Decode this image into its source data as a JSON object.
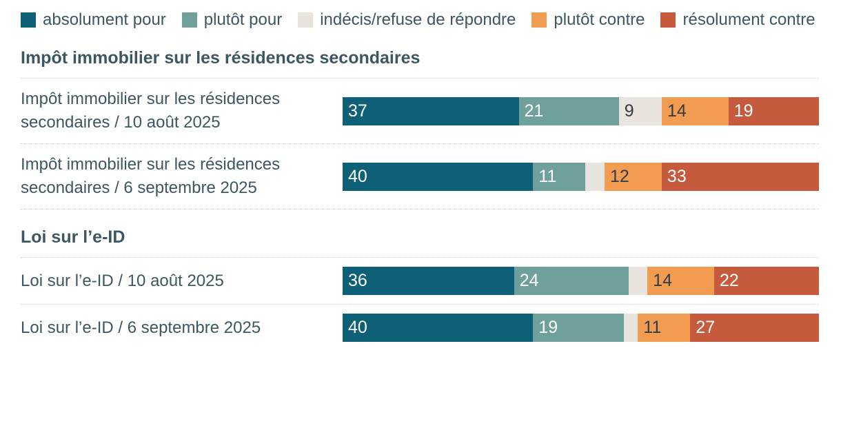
{
  "legend": {
    "items": [
      {
        "label": "absolument pour",
        "color": "#0e6076",
        "swatch_name": "absolument-pour-swatch"
      },
      {
        "label": "plutôt pour",
        "color": "#6fa09b",
        "swatch_name": "plutot-pour-swatch"
      },
      {
        "label": "indécis/refuse de répondre",
        "color": "#e9e4dd",
        "swatch_name": "indecis-swatch"
      },
      {
        "label": "plutôt contre",
        "color": "#f29c52",
        "swatch_name": "plutot-contre-swatch"
      },
      {
        "label": "résolument contre",
        "color": "#c65a3c",
        "swatch_name": "resolument-contre-swatch"
      }
    ]
  },
  "colors": {
    "absolument_pour": "#0e6076",
    "plutot_pour": "#6fa09b",
    "indecis": "#e9e4dd",
    "plutot_contre": "#f29c52",
    "resolument_contre": "#c65a3c",
    "text": "#3d5663"
  },
  "chart_data": {
    "type": "bar",
    "stacked": true,
    "orientation": "horizontal",
    "x_range": [
      0,
      100
    ],
    "grid": false,
    "legend_position": "top",
    "series_names": [
      "absolument pour",
      "plutôt pour",
      "indécis/refuse de répondre",
      "plutôt contre",
      "résolument contre"
    ],
    "series_colors": [
      "#0e6076",
      "#6fa09b",
      "#e9e4dd",
      "#f29c52",
      "#c65a3c"
    ],
    "value_label_colors": [
      "#ffffff",
      "#ffffff",
      "#333c44",
      "#333c44",
      "#ffffff"
    ],
    "sections": [
      {
        "title": "Impôt immobilier sur les résidences secondaires",
        "rows": [
          {
            "label": "Impôt immobilier sur les résidences secondaires / 10 août 2025",
            "values": [
              37,
              21,
              9,
              14,
              19
            ],
            "display_labels": [
              "37",
              "21",
              "9",
              "14",
              "19"
            ]
          },
          {
            "label": "Impôt immobilier sur les résidences secondaires / 6 septembre 2025",
            "values": [
              40,
              11,
              4,
              12,
              33
            ],
            "display_labels": [
              "40",
              "11",
              "",
              "12",
              "33"
            ]
          }
        ]
      },
      {
        "title": "Loi sur l’e-ID",
        "rows": [
          {
            "label": "Loi sur l’e-ID / 10 août 2025",
            "values": [
              36,
              24,
              4,
              14,
              22
            ],
            "display_labels": [
              "36",
              "24",
              "",
              "14",
              "22"
            ]
          },
          {
            "label": "Loi sur l’e-ID / 6 septembre 2025",
            "values": [
              40,
              19,
              3,
              11,
              27
            ],
            "display_labels": [
              "40",
              "19",
              "",
              "11",
              "27"
            ]
          }
        ]
      }
    ]
  }
}
